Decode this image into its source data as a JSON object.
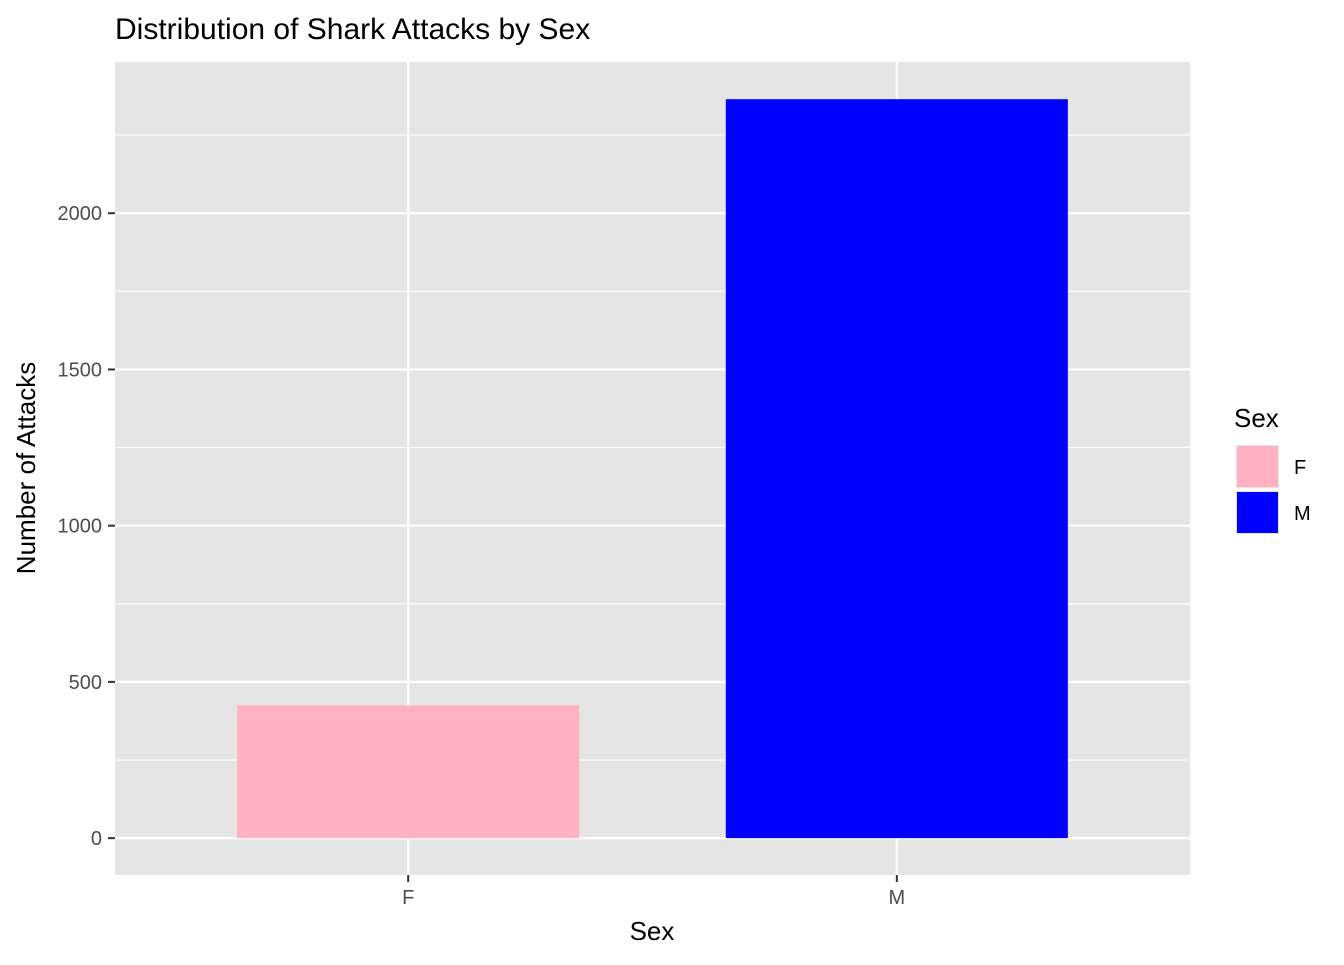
{
  "chart_data": {
    "type": "bar",
    "title": "Distribution of Shark Attacks by Sex",
    "xlabel": "Sex",
    "ylabel": "Number of Attacks",
    "categories": [
      "F",
      "M"
    ],
    "values": [
      425,
      2365
    ],
    "colors": [
      "#FFB0C1",
      "#0000FF"
    ],
    "ylim": [
      -118,
      2484
    ],
    "yticks": [
      0,
      500,
      1000,
      1500,
      2000
    ],
    "ytick_labels": [
      "0",
      "500",
      "1000",
      "1500",
      "2000"
    ],
    "grid": true,
    "panel_background": "#E5E5E5",
    "grid_color": "#FFFFFF",
    "legend": {
      "title": "Sex",
      "placement": "right",
      "entries": [
        {
          "label": "F",
          "color": "#FFB0C1"
        },
        {
          "label": "M",
          "color": "#0000FF"
        }
      ]
    }
  }
}
